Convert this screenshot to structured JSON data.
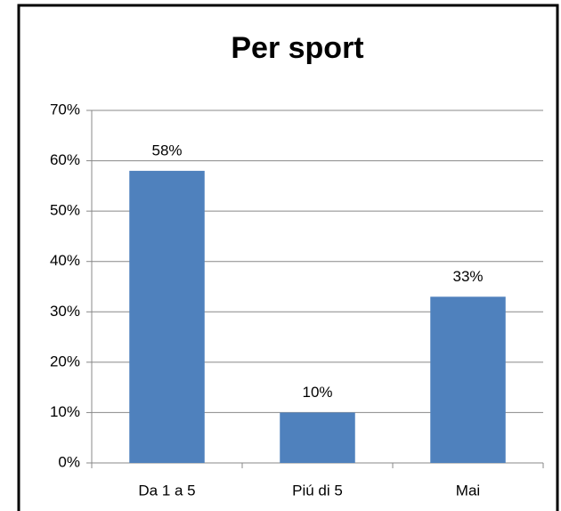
{
  "chart_data": {
    "type": "bar",
    "title": "Per sport",
    "categories": [
      "Da 1 a 5",
      "Piú di 5",
      "Mai"
    ],
    "values": [
      58,
      10,
      33
    ],
    "value_labels": [
      "58%",
      "10%",
      "33%"
    ],
    "color": "#4f81bd",
    "ylim": [
      0,
      70
    ],
    "yticks": [
      {
        "value": 0,
        "label": "0%"
      },
      {
        "value": 10,
        "label": "10%"
      },
      {
        "value": 20,
        "label": "20%"
      },
      {
        "value": 30,
        "label": "30%"
      },
      {
        "value": 40,
        "label": "40%"
      },
      {
        "value": 50,
        "label": "50%"
      },
      {
        "value": 60,
        "label": "60%"
      },
      {
        "value": 70,
        "label": "70%"
      }
    ],
    "grid": true
  }
}
